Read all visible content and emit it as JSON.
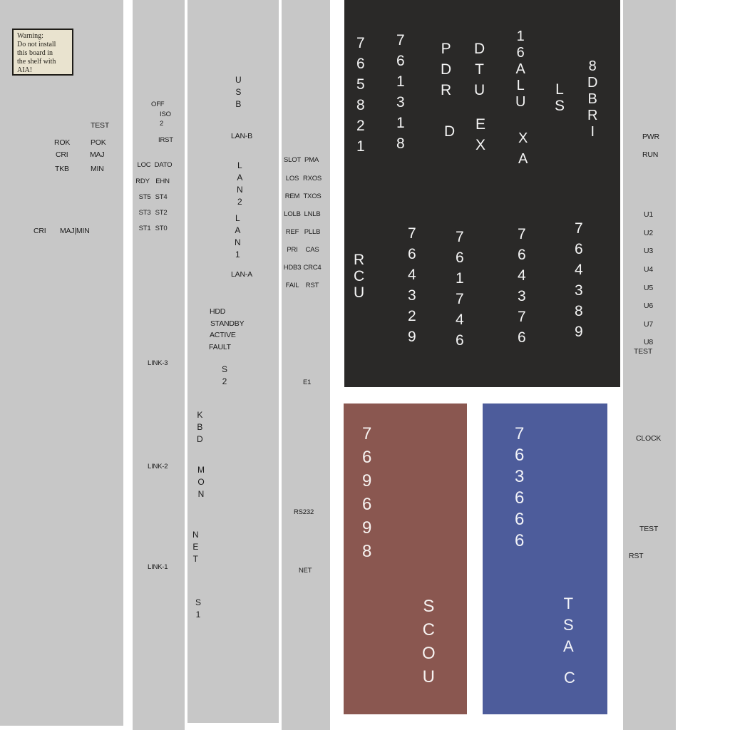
{
  "colors": {
    "panel_gray": "#c7c7c7",
    "dark_panel": "#2a2928",
    "red_panel": "#8a5750",
    "blue_panel": "#4d5c9b",
    "warning_bg": "#e9e3cf",
    "text_dark": "#1b1b1b",
    "text_light": "#f4f4f4"
  },
  "board1": {
    "warning": {
      "lines": [
        "Warning:",
        "Do not install",
        "this board in",
        "the shelf with",
        "AIA!"
      ]
    },
    "test": "TEST",
    "rok": "ROK",
    "pok": "POK",
    "cri": "CRI",
    "maj": "MAJ",
    "tkb": "TKB",
    "min": "MIN",
    "cri_bottom": "CRI",
    "majmin": "MAJ|MIN"
  },
  "board2": {
    "off": "OFF",
    "iso": "ISO",
    "iso_num": "2",
    "irst": "IRST",
    "pairs": [
      [
        "LOC",
        "DATO"
      ],
      [
        "RDY",
        "EHN"
      ],
      [
        "ST5",
        "ST4"
      ],
      [
        "ST3",
        "ST2"
      ],
      [
        "ST1",
        "ST0"
      ]
    ],
    "links": [
      "LINK-3",
      "LINK-2",
      "LINK-1"
    ]
  },
  "board3": {
    "usb": "USB",
    "lan_b": "LAN-B",
    "lan2": "LAN2",
    "lan1": "LAN1",
    "lan_a": "LAN-A",
    "status": [
      "HDD",
      "STANDBY",
      "ACTIVE",
      "FAULT"
    ],
    "s2": "S2",
    "kbd": "KBD",
    "mon": "MON",
    "net": "NET",
    "s1": "S1"
  },
  "board4": {
    "pairs": [
      [
        "SLOT",
        "PMA"
      ],
      [
        "LOS",
        "RXOS"
      ],
      [
        "REM",
        "TXOS"
      ],
      [
        "LOLB",
        "LNLB"
      ],
      [
        "REF",
        "PLLB"
      ],
      [
        "PRI",
        "CAS"
      ],
      [
        "HDB3",
        "CRC4"
      ],
      [
        "FAIL",
        "RST"
      ]
    ],
    "e1": "E1",
    "rs232": "RS232",
    "net": "NET"
  },
  "board_dark": {
    "top": {
      "pn1": "765821",
      "pn2": "761318",
      "pdr": "PDR",
      "pdr2": "D",
      "dtu": "DTU",
      "dtu2": "EX",
      "alu": "16ALU",
      "alu2": "XA",
      "ls": "LS",
      "dbri": "8DBRI"
    },
    "bottom": {
      "rcu": "RCU",
      "pn3": "764329",
      "pn4": "761746",
      "pn5": "764376",
      "pn6": "764389"
    }
  },
  "board_red": {
    "pn": "769698",
    "name": "SCOU"
  },
  "board_blue": {
    "pn": "763666",
    "name1": "TSA",
    "name2": "C"
  },
  "board_right": {
    "pwr": "PWR",
    "run": "RUN",
    "u": [
      "U1",
      "U2",
      "U3",
      "U4",
      "U5",
      "U6",
      "U7",
      "U8"
    ],
    "test_top": "TEST",
    "clock": "CLOCK",
    "test_bottom": "TEST",
    "rst": "RST"
  }
}
